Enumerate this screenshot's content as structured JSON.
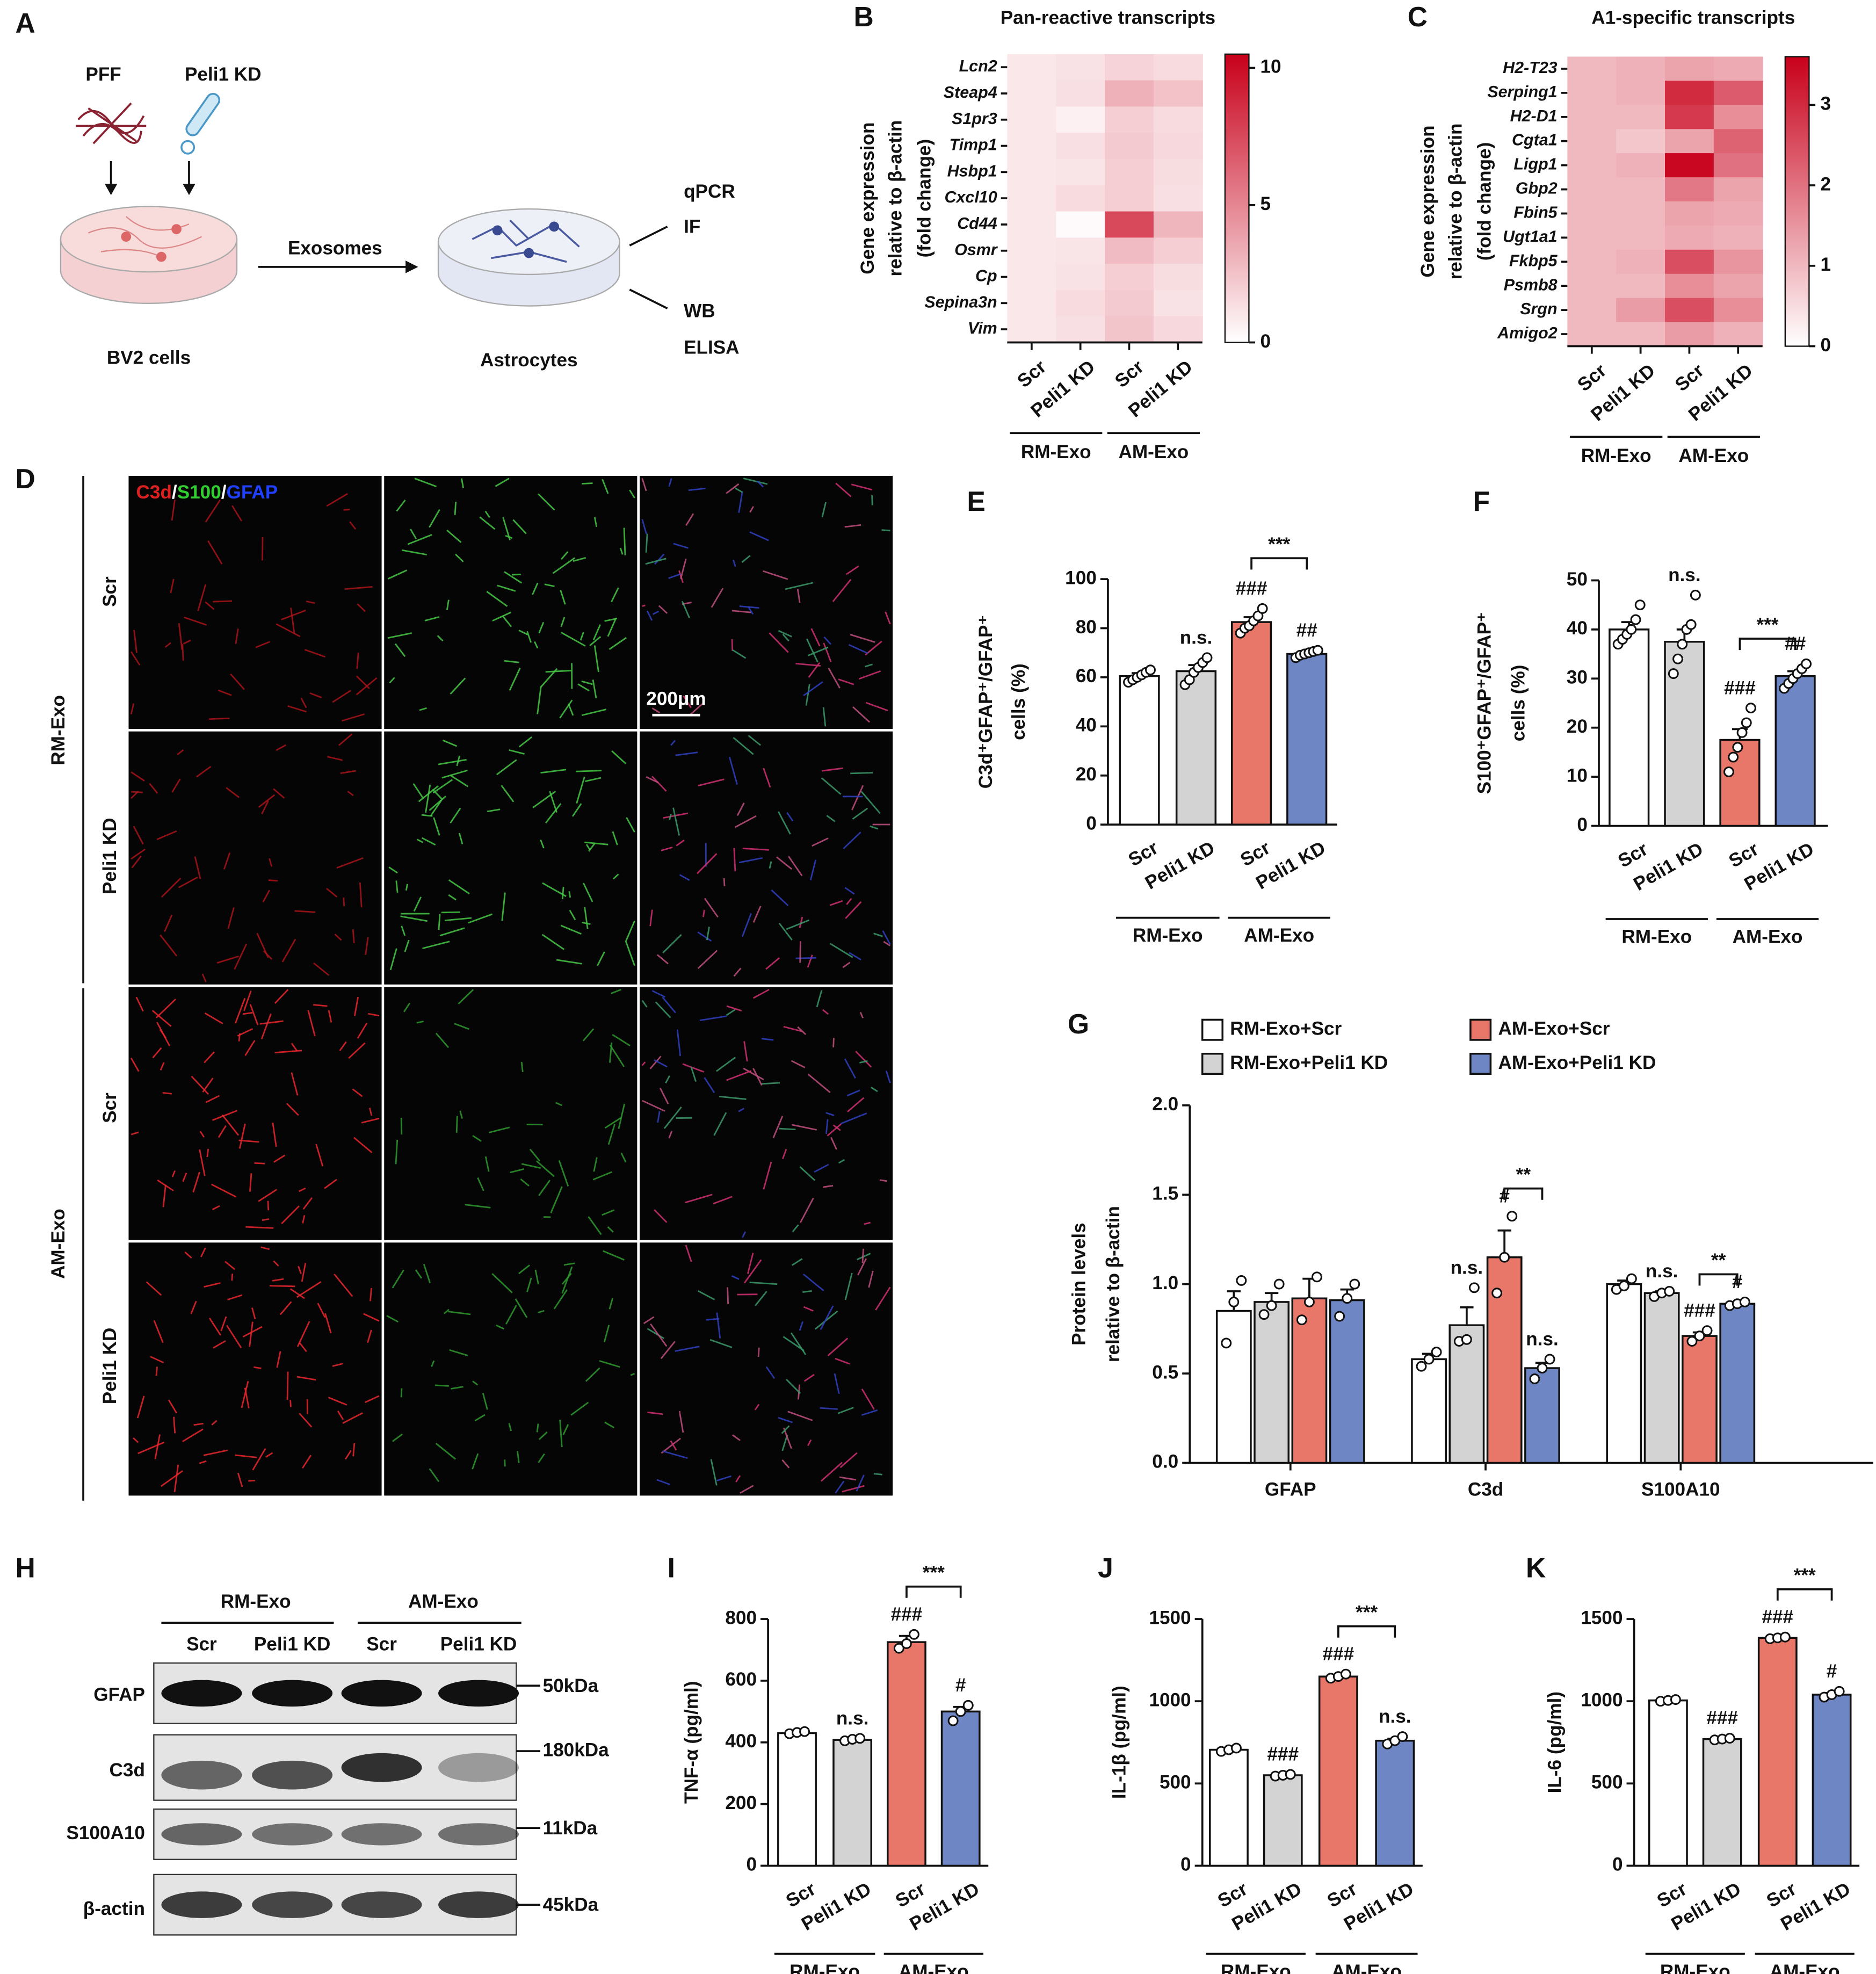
{
  "chart_data": [
    {
      "type": "heatmap",
      "panel": "B",
      "title": "Pan-reactive transcripts",
      "ylabel": [
        "Gene expression",
        "relative to β-actin",
        "(fold change)"
      ],
      "rows": [
        "Lcn2",
        "Steap4",
        "S1pr3",
        "Timp1",
        "Hsbp1",
        "Cxcl10",
        "Cd44",
        "Osmr",
        "Cp",
        "Sepina3n",
        "Vim"
      ],
      "categories": [
        "Scr",
        "Peli1 KD",
        "Scr",
        "Peli1 KD"
      ],
      "groups": [
        "RM-Exo",
        "AM-Exo"
      ],
      "values": [
        [
          1,
          1.2,
          1.8,
          1.5
        ],
        [
          1,
          1.3,
          3.2,
          2.5
        ],
        [
          1,
          0.6,
          2,
          1.5
        ],
        [
          1,
          1.3,
          2.2,
          1.6
        ],
        [
          1,
          1.1,
          2,
          1.4
        ],
        [
          1,
          1.5,
          2,
          1.3
        ],
        [
          1,
          0.2,
          7.5,
          3
        ],
        [
          1,
          1.1,
          2.8,
          2
        ],
        [
          1,
          1.2,
          2,
          1.4
        ],
        [
          1,
          1.5,
          2.2,
          1.2
        ],
        [
          1,
          1.3,
          2.4,
          1.6
        ]
      ],
      "zlim": [
        0,
        10.5
      ],
      "zticks": [
        0,
        5,
        10
      ],
      "colormap": [
        "#ffffff",
        "#c8001a"
      ]
    },
    {
      "type": "heatmap",
      "panel": "C",
      "title": "A1-specific transcripts",
      "ylabel": [
        "Gene expression",
        "relative to β-actin",
        "(fold change)"
      ],
      "rows": [
        "H2-T23",
        "Serping1",
        "H2-D1",
        "Cgta1",
        "Ligp1",
        "Gbp2",
        "Fbin5",
        "Ugt1a1",
        "Fkbp5",
        "Psmb8",
        "Srgn",
        "Amigo2"
      ],
      "categories": [
        "Scr",
        "Peli1 KD",
        "Scr",
        "Peli1 KD"
      ],
      "groups": [
        "RM-Exo",
        "AM-Exo"
      ],
      "values": [
        [
          1,
          1.1,
          1.3,
          1.2
        ],
        [
          1,
          1.1,
          3,
          2.3
        ],
        [
          1,
          1,
          2.8,
          1.6
        ],
        [
          1,
          0.8,
          1.3,
          2.2
        ],
        [
          1,
          1.1,
          3.5,
          2
        ],
        [
          1,
          1,
          1.9,
          1.3
        ],
        [
          1,
          1,
          1.3,
          1.2
        ],
        [
          1,
          1,
          1.2,
          1.1
        ],
        [
          1,
          1.1,
          2.5,
          1.5
        ],
        [
          1,
          1,
          1.6,
          1.3
        ],
        [
          1,
          1.4,
          2.5,
          1.6
        ],
        [
          1,
          1,
          1.4,
          1.1
        ]
      ],
      "zlim": [
        0,
        3.6
      ],
      "zticks": [
        0,
        1,
        2,
        3
      ],
      "colormap": [
        "#ffffff",
        "#c8001a"
      ]
    },
    {
      "type": "bar",
      "panel": "E",
      "ylabel": [
        "C3d⁺GFAP⁺/GFAP⁺",
        "cells (%)"
      ],
      "categories": [
        "Scr",
        "Peli1 KD",
        "Scr",
        "Peli1 KD"
      ],
      "groups": [
        "RM-Exo",
        "AM-Exo"
      ],
      "values": [
        60.5,
        62.5,
        82.5,
        69.5
      ],
      "errors": [
        1.2,
        2.5,
        2,
        0.8
      ],
      "points": [
        [
          58,
          59,
          60,
          61,
          62,
          63
        ],
        [
          57,
          59,
          62,
          64,
          66,
          68
        ],
        [
          78,
          80,
          81,
          83,
          85,
          88
        ],
        [
          68,
          69,
          69.5,
          70,
          70.5,
          71
        ]
      ],
      "colors": [
        "#ffffff",
        "#d3d3d3",
        "#e8776a",
        "#6e86c4"
      ],
      "bar_labels": [
        null,
        "n.s.",
        "###",
        "##"
      ],
      "bracket": "***",
      "ylim": [
        0,
        100
      ],
      "yticks": [
        0,
        20,
        40,
        60,
        80,
        100
      ]
    },
    {
      "type": "bar",
      "panel": "F",
      "ylabel": [
        "S100⁺GFAP⁺/GFAP⁺",
        "cells (%)"
      ],
      "categories": [
        "Scr",
        "Peli1 KD",
        "Scr",
        "Peli1 KD"
      ],
      "groups": [
        "RM-Exo",
        "AM-Exo"
      ],
      "values": [
        40,
        37.5,
        17.5,
        30.5
      ],
      "errors": [
        1.5,
        2.5,
        2.2,
        1
      ],
      "points": [
        [
          37,
          38,
          39,
          40,
          42,
          45
        ],
        [
          31,
          34,
          37,
          40,
          41,
          47
        ],
        [
          11,
          14,
          16,
          19,
          21,
          24
        ],
        [
          28,
          29,
          30,
          31,
          32,
          33
        ]
      ],
      "colors": [
        "#ffffff",
        "#d3d3d3",
        "#e8776a",
        "#6e86c4"
      ],
      "bar_labels": [
        null,
        "n.s.",
        "###",
        "##"
      ],
      "bracket": "***",
      "ylim": [
        0,
        50
      ],
      "yticks": [
        0,
        10,
        20,
        30,
        40,
        50
      ]
    },
    {
      "type": "grouped_bar",
      "panel": "G",
      "ylabel": [
        "Protein levels",
        "relative to β-actin"
      ],
      "categories": [
        "GFAP",
        "C3d",
        "S100A10"
      ],
      "series": [
        {
          "name": "RM-Exo+Scr",
          "color": "#ffffff",
          "values": [
            0.85,
            0.58,
            1.0
          ],
          "errors": [
            0.11,
            0.03,
            0.02
          ],
          "points": [
            [
              0.67,
              0.9,
              1.02
            ],
            [
              0.54,
              0.58,
              0.62
            ],
            [
              0.97,
              0.99,
              1.03
            ]
          ],
          "labels": [
            null,
            null,
            null
          ]
        },
        {
          "name": "RM-Exo+Peli1 KD",
          "color": "#d3d3d3",
          "values": [
            0.9,
            0.77,
            0.95
          ],
          "errors": [
            0.05,
            0.1,
            0.01
          ],
          "points": [
            [
              0.83,
              0.88,
              1.0
            ],
            [
              0.68,
              0.69,
              0.98
            ],
            [
              0.93,
              0.95,
              0.96
            ]
          ],
          "labels": [
            null,
            "n.s.",
            "n.s."
          ]
        },
        {
          "name": "AM-Exo+Scr",
          "color": "#e8776a",
          "values": [
            0.92,
            1.15,
            0.71
          ],
          "errors": [
            0.11,
            0.15,
            0.02
          ],
          "points": [
            [
              0.8,
              0.9,
              1.04
            ],
            [
              0.95,
              1.15,
              1.38
            ],
            [
              0.68,
              0.71,
              0.74
            ]
          ],
          "labels": [
            null,
            "#",
            "###"
          ]
        },
        {
          "name": "AM-Exo+Peli1 KD",
          "color": "#6e86c4",
          "values": [
            0.91,
            0.53,
            0.89
          ],
          "errors": [
            0.06,
            0.03,
            0.01
          ],
          "points": [
            [
              0.82,
              0.92,
              1.0
            ],
            [
              0.47,
              0.53,
              0.58
            ],
            [
              0.88,
              0.89,
              0.9
            ]
          ],
          "labels": [
            null,
            "n.s.",
            "#"
          ]
        }
      ],
      "brackets": [
        null,
        "**",
        "**"
      ],
      "ylim": [
        0,
        2
      ],
      "yticks": [
        {
          "value": 0,
          "label": "0.0"
        },
        {
          "value": 0.5,
          "label": "0.5"
        },
        {
          "value": 1,
          "label": "1.0"
        },
        {
          "value": 1.5,
          "label": "1.5"
        },
        {
          "value": 2,
          "label": "2.0"
        }
      ]
    },
    {
      "type": "bar",
      "panel": "I",
      "ylabel": [
        "TNF-α (pg/ml)"
      ],
      "categories": [
        "Scr",
        "Peli1 KD",
        "Scr",
        "Peli1 KD"
      ],
      "groups": [
        "RM-Exo",
        "AM-Exo"
      ],
      "values": [
        430,
        408,
        725,
        500
      ],
      "errors": [
        4,
        3,
        20,
        15
      ],
      "points": [
        [
          428,
          432,
          435
        ],
        [
          405,
          410,
          413
        ],
        [
          705,
          720,
          750
        ],
        [
          470,
          500,
          520
        ]
      ],
      "colors": [
        "#ffffff",
        "#d3d3d3",
        "#e8776a",
        "#6e86c4"
      ],
      "bar_labels": [
        null,
        "n.s.",
        "###",
        "#"
      ],
      "bracket": "***",
      "ylim": [
        0,
        800
      ],
      "yticks": [
        0,
        200,
        400,
        600,
        800
      ]
    },
    {
      "type": "bar",
      "panel": "J",
      "ylabel": [
        "IL-1β (pg/ml)"
      ],
      "categories": [
        "Scr",
        "Peli1 KD",
        "Scr",
        "Peli1 KD"
      ],
      "groups": [
        "RM-Exo",
        "AM-Exo"
      ],
      "values": [
        705,
        550,
        1150,
        760
      ],
      "errors": [
        6,
        3,
        8,
        12
      ],
      "points": [
        [
          695,
          705,
          715
        ],
        [
          545,
          550,
          555
        ],
        [
          1140,
          1150,
          1165
        ],
        [
          740,
          760,
          785
        ]
      ],
      "colors": [
        "#ffffff",
        "#d3d3d3",
        "#e8776a",
        "#6e86c4"
      ],
      "bar_labels": [
        null,
        "###",
        "###",
        "n.s."
      ],
      "bracket": "***",
      "ylim": [
        0,
        1500
      ],
      "yticks": [
        0,
        500,
        1000,
        1500
      ]
    },
    {
      "type": "bar",
      "panel": "K",
      "ylabel": [
        "IL-6 (pg/ml)"
      ],
      "categories": [
        "Scr",
        "Peli1 KD",
        "Scr",
        "Peli1 KD"
      ],
      "groups": [
        "RM-Exo",
        "AM-Exo"
      ],
      "values": [
        1005,
        770,
        1385,
        1040
      ],
      "errors": [
        3,
        3,
        3,
        10
      ],
      "points": [
        [
          1000,
          1005,
          1010
        ],
        [
          765,
          770,
          775
        ],
        [
          1380,
          1385,
          1390
        ],
        [
          1025,
          1040,
          1060
        ]
      ],
      "colors": [
        "#ffffff",
        "#d3d3d3",
        "#e8776a",
        "#6e86c4"
      ],
      "bar_labels": [
        null,
        "###",
        "###",
        "#"
      ],
      "bracket": "***",
      "ylim": [
        0,
        1500
      ],
      "yticks": [
        0,
        500,
        1000,
        1500
      ]
    }
  ],
  "schematic": {
    "panel": "A",
    "inputs": [
      "PFF",
      "Peli1 KD"
    ],
    "arrow_label": "Exosomes",
    "source": "BV2 cells",
    "target": "Astrocytes",
    "readouts": [
      "qPCR",
      "IF",
      "WB",
      "ELISA"
    ]
  },
  "microscopy": {
    "panel": "D",
    "stains": [
      "C3d",
      "S100",
      "GFAP"
    ],
    "separator": "/",
    "groups": [
      "RM-Exo",
      "AM-Exo"
    ],
    "rows": [
      "Scr",
      "Peli1 KD",
      "Scr",
      "Peli1 KD"
    ],
    "scale_bar": "200μm"
  },
  "western_blot": {
    "panel": "H",
    "groups": [
      "RM-Exo",
      "AM-Exo"
    ],
    "lanes": [
      "Scr",
      "Peli1 KD",
      "Scr",
      "Peli1 KD"
    ],
    "proteins": [
      "GFAP",
      "C3d",
      "S100A10",
      "β-actin"
    ],
    "sizes": [
      "50kDa",
      "180kDa",
      "11kDa",
      "45kDa"
    ]
  }
}
